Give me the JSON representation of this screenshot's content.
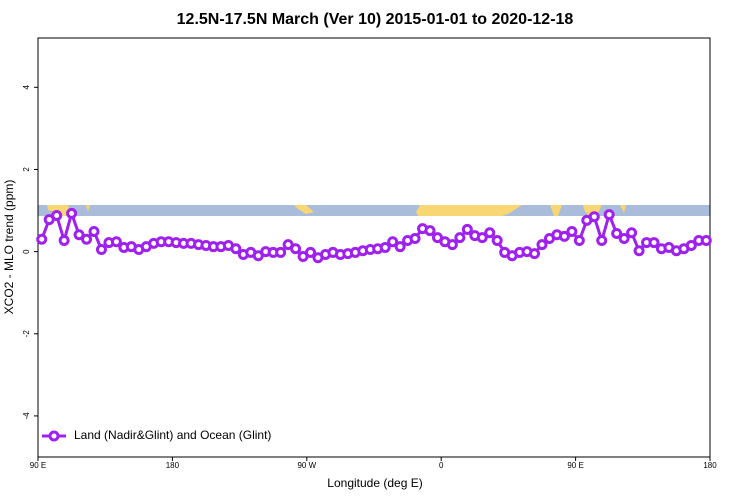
{
  "chart_data": {
    "type": "line",
    "title": "12.5N-17.5N March (Ver 10)   2015-01-01 to 2020-12-18",
    "x_label": "Longitude (deg E)",
    "y_label": "XCO2 - MLO trend (ppm)",
    "x": [
      92.5,
      97.5,
      102.5,
      107.5,
      112.5,
      117.5,
      122.5,
      127.5,
      132.5,
      137.5,
      142.5,
      147.5,
      152.5,
      157.5,
      162.5,
      167.5,
      172.5,
      177.5,
      182.5,
      187.5,
      192.5,
      197.5,
      202.5,
      207.5,
      212.5,
      217.5,
      222.5,
      227.5,
      232.5,
      237.5,
      242.5,
      247.5,
      252.5,
      257.5,
      262.5,
      267.5,
      272.5,
      277.5,
      282.5,
      287.5,
      292.5,
      297.5,
      302.5,
      307.5,
      312.5,
      317.5,
      322.5,
      327.5,
      332.5,
      337.5,
      342.5,
      347.5,
      352.5,
      357.5,
      362.5,
      367.5,
      372.5,
      377.5,
      382.5,
      387.5,
      392.5,
      397.5,
      402.5,
      407.5,
      412.5,
      417.5,
      422.5,
      427.5,
      432.5,
      437.5,
      442.5,
      447.5,
      452.5,
      457.5,
      462.5,
      467.5,
      472.5,
      477.5,
      482.5,
      487.5,
      492.5,
      497.5,
      502.5,
      507.5,
      512.5,
      517.5,
      522.5,
      527.5,
      532.5,
      537.5
    ],
    "series": [
      {
        "name": "Land (Nadir&Glint) and Ocean (Glint)",
        "color": "#a020f0",
        "values": [
          0.3,
          0.78,
          0.88,
          0.27,
          0.93,
          0.41,
          0.3,
          0.49,
          0.05,
          0.22,
          0.24,
          0.1,
          0.12,
          0.05,
          0.12,
          0.2,
          0.24,
          0.24,
          0.22,
          0.2,
          0.2,
          0.17,
          0.15,
          0.12,
          0.12,
          0.15,
          0.07,
          -0.07,
          -0.02,
          -0.1,
          0.0,
          -0.02,
          -0.02,
          0.17,
          0.07,
          -0.12,
          -0.02,
          -0.15,
          -0.07,
          -0.02,
          -0.07,
          -0.05,
          -0.02,
          0.02,
          0.05,
          0.07,
          0.1,
          0.24,
          0.12,
          0.27,
          0.32,
          0.56,
          0.51,
          0.34,
          0.24,
          0.17,
          0.34,
          0.54,
          0.39,
          0.34,
          0.46,
          0.27,
          -0.02,
          -0.1,
          -0.02,
          0.0,
          -0.05,
          0.17,
          0.32,
          0.41,
          0.37,
          0.49,
          0.27,
          0.76,
          0.85,
          0.27,
          0.9,
          0.44,
          0.32,
          0.46,
          0.02,
          0.22,
          0.22,
          0.07,
          0.1,
          0.02,
          0.07,
          0.15,
          0.27,
          0.27
        ]
      }
    ],
    "xlim": [
      90,
      540
    ],
    "xticks": [
      {
        "value": 90,
        "label": "90 E"
      },
      180,
      {
        "value": 270,
        "label": "90 W"
      },
      {
        "value": 360,
        "label": "0"
      },
      {
        "value": 450,
        "label": "90 E"
      },
      {
        "value": 540,
        "label": "180"
      }
    ],
    "ylim": [
      -5,
      5.2
    ],
    "yticks": [
      -4,
      -2,
      0,
      2,
      4
    ],
    "legend": "bottom left"
  }
}
